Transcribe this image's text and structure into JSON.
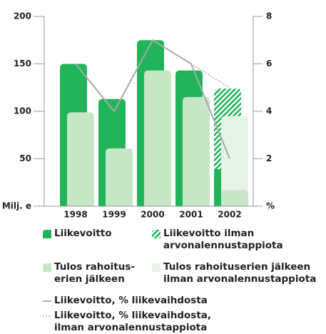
{
  "chart_data": {
    "type": "bar",
    "categories": [
      "1998",
      "1999",
      "2000",
      "2001",
      "2002"
    ],
    "series": [
      {
        "name": "Liikevoitto",
        "type": "bar",
        "color": "#22b45a",
        "values": [
          150,
          113,
          175,
          143,
          39
        ]
      },
      {
        "name": "Liikevoitto ilman arvonalennustappiota",
        "type": "bar",
        "pattern": "hatched",
        "color": "#22b45a",
        "values": [
          null,
          null,
          null,
          null,
          124
        ]
      },
      {
        "name": "Tulos rahoitus-erien jälkeen",
        "type": "bar",
        "color": "#c6e6c6",
        "values": [
          99,
          61,
          143,
          115,
          17
        ]
      },
      {
        "name": "Tulos rahoituserien jälkeen ilman arvonalennustappiota",
        "type": "bar",
        "color": "#e6f3e6",
        "values": [
          null,
          null,
          null,
          null,
          95
        ]
      },
      {
        "name": "Liikevoitto, % liikevaihdosta",
        "type": "line",
        "axis": "y2",
        "color": "#a9a9a9",
        "values": [
          6,
          4,
          7,
          6,
          2
        ]
      },
      {
        "name": "Liikevoitto, % liikevaihdosta, ilman arvonalennustappiota",
        "type": "line",
        "dashed": true,
        "axis": "y2",
        "color": "#a9a9a9",
        "values": [
          null,
          null,
          null,
          6,
          5
        ]
      }
    ],
    "ylim": [
      0,
      200
    ],
    "yticks": [
      {
        "value": 0,
        "label": "Milj. e"
      },
      50,
      100,
      150,
      200
    ],
    "y2lim": [
      0,
      8
    ],
    "y2ticks": [
      {
        "value": 0,
        "label": "%"
      },
      2,
      4,
      6,
      8
    ]
  }
}
